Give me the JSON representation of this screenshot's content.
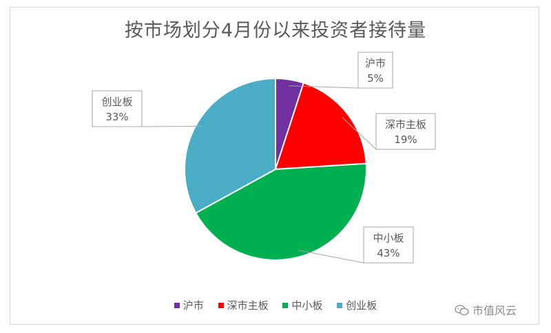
{
  "chart_data": {
    "type": "pie",
    "title": "按市场划分4月份以来投资者接待量",
    "start_angle_deg": 0,
    "direction": "clockwise",
    "slices": [
      {
        "label": "沪市",
        "value": 5,
        "value_label": "5%",
        "color": "#7030A0"
      },
      {
        "label": "深市主板",
        "value": 19,
        "value_label": "19%",
        "color": "#FF0000"
      },
      {
        "label": "中小板",
        "value": 43,
        "value_label": "43%",
        "color": "#00B050"
      },
      {
        "label": "创业板",
        "value": 33,
        "value_label": "33%",
        "color": "#4BACC6"
      }
    ],
    "legend_position": "bottom"
  },
  "watermark": {
    "text": "市值风云",
    "icon": "wechat-icon"
  }
}
